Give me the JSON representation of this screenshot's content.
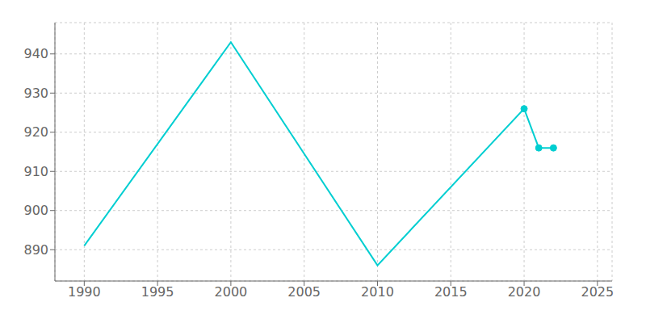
{
  "chart_data": {
    "type": "line",
    "x": [
      1990,
      2000,
      2010,
      2020,
      2021,
      2022
    ],
    "series": [
      {
        "type": "line",
        "color": "#00CED1",
        "values": [
          891,
          943,
          886,
          926,
          916,
          916
        ]
      },
      {
        "type": "scatter",
        "color": "#00CED1",
        "marker": "circle",
        "values": [
          null,
          null,
          null,
          926,
          916,
          916
        ]
      }
    ],
    "xlim": [
      1988,
      2026
    ],
    "ylim": [
      882,
      948
    ],
    "xticks": [
      1990,
      1995,
      2000,
      2005,
      2010,
      2015,
      2020,
      2025
    ],
    "yticks": [
      890,
      900,
      910,
      920,
      930,
      940
    ],
    "grid": true
  }
}
